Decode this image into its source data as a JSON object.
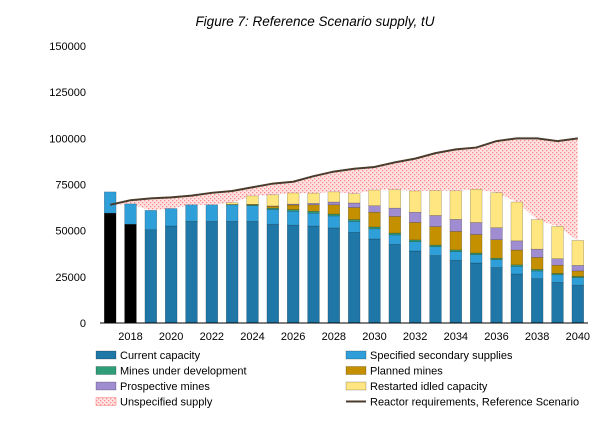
{
  "chart_data": {
    "type": "bar",
    "title": "Figure 7: Reference Scenario supply, tU",
    "xlabel": "",
    "ylabel": "",
    "ylim": [
      0,
      150000
    ],
    "yticks": [
      "0",
      "25000",
      "50000",
      "75000",
      "100000",
      "125000",
      "150000"
    ],
    "x": [
      2017,
      2018,
      2019,
      2020,
      2021,
      2022,
      2023,
      2024,
      2025,
      2026,
      2027,
      2028,
      2029,
      2030,
      2031,
      2032,
      2033,
      2034,
      2035,
      2036,
      2037,
      2038,
      2039,
      2040
    ],
    "xtick_labels": [
      "2018",
      "2020",
      "2022",
      "2024",
      "2026",
      "2028",
      "2030",
      "2032",
      "2034",
      "2036",
      "2038",
      "2040"
    ],
    "historical_years": [
      2017,
      2018
    ],
    "historical_color": "#000000",
    "series": [
      {
        "name": "Current capacity",
        "color": "#1f77a8",
        "values": [
          59500,
          53500,
          50500,
          52500,
          55000,
          55000,
          55000,
          55000,
          53500,
          53000,
          52500,
          51500,
          49000,
          45500,
          42500,
          39000,
          36500,
          34000,
          32500,
          30000,
          26500,
          24000,
          22000,
          20500
        ]
      },
      {
        "name": "Specified secondary supplies",
        "color": "#2e9fd8",
        "values": [
          11500,
          11000,
          10500,
          9500,
          9000,
          9000,
          9000,
          8500,
          8000,
          7500,
          7000,
          6500,
          6000,
          5500,
          5200,
          5000,
          4800,
          4700,
          4500,
          4300,
          4200,
          4200,
          4100,
          4000
        ]
      },
      {
        "name": "Mines under development",
        "color": "#2f9e78",
        "values": [
          0,
          0,
          0,
          0,
          0,
          0,
          200,
          500,
          700,
          900,
          1000,
          1000,
          1000,
          1000,
          1000,
          1000,
          900,
          900,
          900,
          800,
          800,
          800,
          700,
          700
        ]
      },
      {
        "name": "Planned mines",
        "color": "#c49000",
        "values": [
          0,
          0,
          0,
          0,
          0,
          0,
          0,
          300,
          1000,
          2500,
          3500,
          5000,
          6500,
          8000,
          9000,
          9500,
          10000,
          10000,
          10000,
          10000,
          8000,
          6500,
          4500,
          3000
        ]
      },
      {
        "name": "Prospective mines",
        "color": "#a08cd0",
        "values": [
          0,
          0,
          0,
          0,
          0,
          0,
          0,
          0,
          200,
          500,
          800,
          1500,
          2500,
          3500,
          4500,
          5500,
          6000,
          6500,
          6500,
          6500,
          5000,
          4500,
          3500,
          3000
        ]
      },
      {
        "name": "Restarted idled capacity",
        "color": "#ffe680",
        "values": [
          0,
          0,
          0,
          0,
          0,
          0,
          1000,
          4500,
          6000,
          6000,
          5500,
          5500,
          5000,
          8500,
          10000,
          11500,
          13500,
          15500,
          18000,
          19000,
          21000,
          16000,
          17500,
          13500
        ]
      }
    ],
    "unspecified_supply": {
      "name": "Unspecified supply",
      "color": "#ff8a8a"
    },
    "reactor_requirements": {
      "name": "Reactor requirements, Reference Scenario",
      "color": "#4a3c2c",
      "values": [
        64000,
        66500,
        67500,
        68000,
        69000,
        70500,
        71500,
        73500,
        75500,
        76500,
        79500,
        82000,
        83500,
        84500,
        87000,
        89000,
        92000,
        94000,
        95000,
        98500,
        100000,
        100000,
        98500,
        100000
      ]
    },
    "legend": [
      {
        "label": "Current capacity",
        "kind": "bar",
        "color": "#1f77a8"
      },
      {
        "label": "Specified secondary supplies",
        "kind": "bar",
        "color": "#2e9fd8"
      },
      {
        "label": "Mines under development",
        "kind": "bar",
        "color": "#2f9e78"
      },
      {
        "label": "Planned mines",
        "kind": "bar",
        "color": "#c49000"
      },
      {
        "label": "Prospective mines",
        "kind": "bar",
        "color": "#a08cd0"
      },
      {
        "label": "Restarted idled capacity",
        "kind": "bar",
        "color": "#ffe680"
      },
      {
        "label": "Unspecified supply",
        "kind": "hatch",
        "color": "#ff8a8a"
      },
      {
        "label": "Reactor requirements, Reference Scenario",
        "kind": "line",
        "color": "#4a3c2c"
      }
    ],
    "legend_position": "bottom",
    "grid": false
  }
}
